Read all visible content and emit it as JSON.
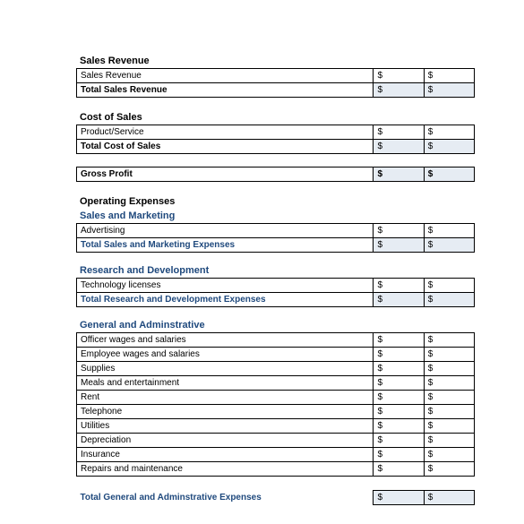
{
  "colors": {
    "blue_text": "#1f497d",
    "shaded_bg": "#e6ecf3",
    "border": "#000000",
    "bg": "#ffffff"
  },
  "typography": {
    "font_family": "Arial",
    "heading_size_pt": 11,
    "row_size_pt": 10
  },
  "currency_symbol": "$",
  "sections": {
    "sales_revenue": {
      "heading": "Sales Revenue",
      "rows": [
        {
          "label": "Sales Revenue",
          "val1": "$",
          "val2": "$"
        }
      ],
      "total": {
        "label": "Total Sales Revenue",
        "val1": "$",
        "val2": "$"
      }
    },
    "cost_of_sales": {
      "heading": "Cost of Sales",
      "rows": [
        {
          "label": "Product/Service",
          "val1": "$",
          "val2": "$"
        }
      ],
      "total": {
        "label": "Total Cost of Sales",
        "val1": "$",
        "val2": "$"
      }
    },
    "gross_profit": {
      "label": "Gross Profit",
      "val1": "$",
      "val2": "$"
    },
    "operating_expenses": {
      "heading": "Operating Expenses",
      "sales_marketing": {
        "heading": "Sales and Marketing",
        "rows": [
          {
            "label": "Advertising",
            "val1": "$",
            "val2": "$"
          }
        ],
        "total": {
          "label": "Total Sales and Marketing Expenses",
          "val1": "$",
          "val2": "$"
        }
      },
      "research_dev": {
        "heading": "Research and Development",
        "rows": [
          {
            "label": "Technology licenses",
            "val1": "$",
            "val2": "$"
          }
        ],
        "total": {
          "label": "Total Research and Development Expenses",
          "val1": "$",
          "val2": "$"
        }
      },
      "general_admin": {
        "heading": "General and Adminstrative",
        "rows": [
          {
            "label": "Officer wages and salaries",
            "val1": "$",
            "val2": "$"
          },
          {
            "label": "Employee wages and salaries",
            "val1": "$",
            "val2": "$"
          },
          {
            "label": "Supplies",
            "val1": "$",
            "val2": "$"
          },
          {
            "label": "Meals and entertainment",
            "val1": "$",
            "val2": "$"
          },
          {
            "label": "Rent",
            "val1": "$",
            "val2": "$"
          },
          {
            "label": "Telephone",
            "val1": "$",
            "val2": "$"
          },
          {
            "label": "Utilities",
            "val1": "$",
            "val2": "$"
          },
          {
            "label": "Depreciation",
            "val1": "$",
            "val2": "$"
          },
          {
            "label": "Insurance",
            "val1": "$",
            "val2": "$"
          },
          {
            "label": "Repairs and maintenance",
            "val1": "$",
            "val2": "$"
          }
        ],
        "total": {
          "label": "Total General and Adminstrative Expenses",
          "val1": "$",
          "val2": "$"
        }
      }
    }
  }
}
